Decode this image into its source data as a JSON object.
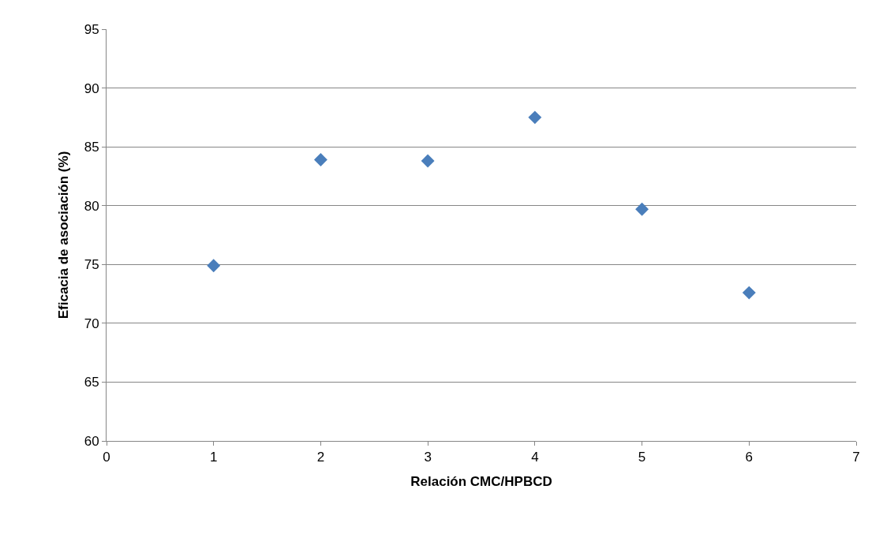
{
  "chart_data": {
    "type": "scatter",
    "xlabel": "Relación CMC/HPBCD",
    "ylabel": "Eficacia de asociación (%)",
    "x": [
      1,
      2,
      3,
      4,
      5,
      6
    ],
    "series": [
      {
        "color": "#4a7ebb",
        "values": [
          74.9,
          83.9,
          83.8,
          87.5,
          79.7,
          72.6
        ]
      }
    ],
    "xlim": [
      0,
      7
    ],
    "xticks": [
      0,
      1,
      2,
      3,
      4,
      5,
      6,
      7
    ],
    "ylim": [
      60,
      95
    ],
    "yticks": [
      60,
      65,
      70,
      75,
      80,
      85,
      90,
      95
    ],
    "grid": "y",
    "marker": "diamond"
  }
}
